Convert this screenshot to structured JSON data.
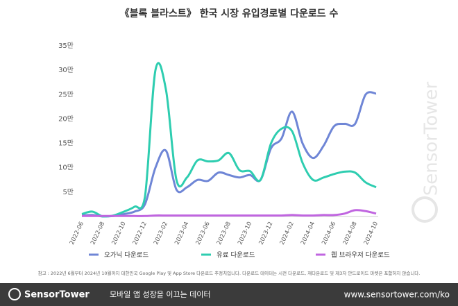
{
  "chart_data": {
    "type": "line",
    "title": "《블록 블라스트》 한국 시장 유입경로별 다운로드 수",
    "categories": [
      "2022-06",
      null,
      "2022-08",
      null,
      "2022-10",
      null,
      "2022-12",
      null,
      "2023-02",
      null,
      "2023-04",
      null,
      "2023-06",
      null,
      "2023-08",
      null,
      "2023-10",
      null,
      "2023-12",
      null,
      "2024-02",
      null,
      "2024-04",
      null,
      "2024-06",
      null,
      "2024-08",
      null,
      "2024-10"
    ],
    "series": [
      {
        "name": "오가닉 다운로드",
        "color": "#6f86d6",
        "values": [
          0.2,
          0.3,
          0,
          0.1,
          0.5,
          1,
          2.5,
          10,
          13.5,
          5.5,
          6,
          7.5,
          7.3,
          9,
          8.5,
          8,
          8.5,
          7.5,
          14,
          16,
          21.5,
          15,
          12,
          14.5,
          18.5,
          19,
          19,
          25,
          25.2
        ]
      },
      {
        "name": "유료 다운로드",
        "color": "#2ecdb0",
        "values": [
          0.5,
          1,
          0,
          0.2,
          1,
          2,
          4,
          30,
          26,
          7.5,
          8,
          11.5,
          11.3,
          11.5,
          13,
          9.5,
          9.3,
          7.5,
          15,
          18,
          17.5,
          11,
          7.5,
          8,
          8.7,
          9.2,
          9,
          7,
          6
        ]
      },
      {
        "name": "웹 브라우저 다운로드",
        "color": "#c065e0",
        "values": [
          0.1,
          0.1,
          0.1,
          0.1,
          0.1,
          0.1,
          0.1,
          0.2,
          0.2,
          0.2,
          0.2,
          0.2,
          0.2,
          0.2,
          0.2,
          0.2,
          0.2,
          0.2,
          0.2,
          0.2,
          0.3,
          0.2,
          0.2,
          0.3,
          0.3,
          0.6,
          1.3,
          1.1,
          0.6
        ]
      }
    ],
    "ylim": [
      0,
      35
    ],
    "yticks": [
      {
        "value": 5,
        "label": "5만"
      },
      {
        "value": 10,
        "label": "10만"
      },
      {
        "value": 15,
        "label": "15만"
      },
      {
        "value": 20,
        "label": "20만"
      },
      {
        "value": 25,
        "label": "25만"
      },
      {
        "value": 30,
        "label": "30만"
      },
      {
        "value": 35,
        "label": "35만"
      }
    ],
    "grid": false,
    "note": "참고 : 2022년 6월부터 2024년 10월까지 대한민국 Google Play 및 App Store 다운로드 추정치입니다. 다운로드 데이터는 시전 다운로드, 재다운로드 및 제3자 안드로이드 마켓은 포함하지 않습니다.",
    "watermark": "SensorTower",
    "footer": {
      "brand": "SensorTower",
      "tagline": "모바일 앱 성장을 이끄는 데이터",
      "url": "www.sensortower.com/ko"
    }
  }
}
